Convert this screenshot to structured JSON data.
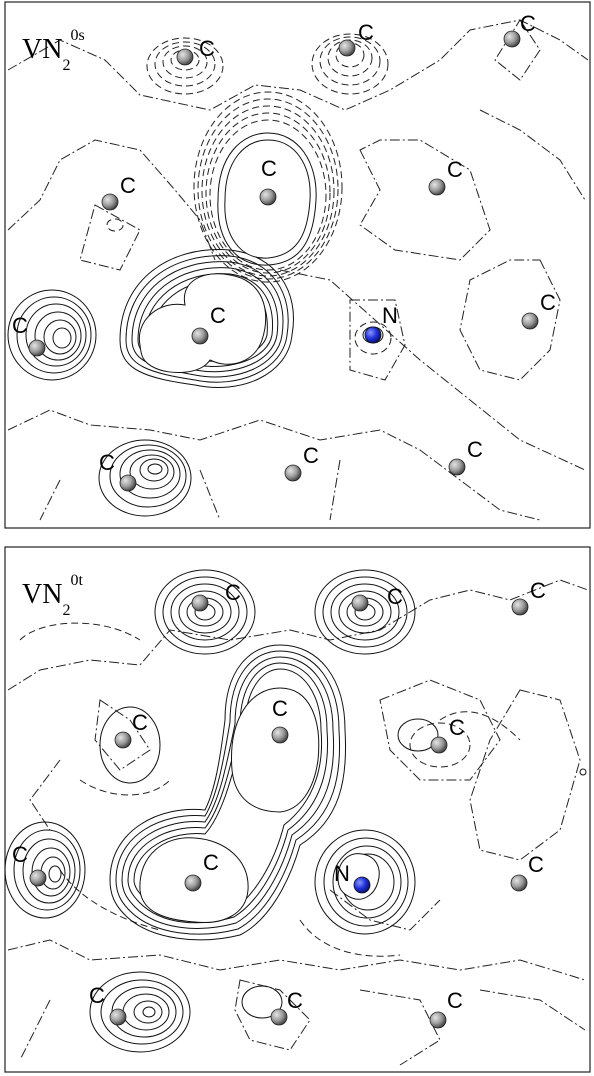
{
  "panels": [
    {
      "title": {
        "main": "VN",
        "sub": "2",
        "sup": "0s"
      },
      "atom_label_carbon": "C",
      "atom_label_nitrogen": "N"
    },
    {
      "title": {
        "main": "VN",
        "sub": "2",
        "sup": "0t"
      },
      "atom_label_carbon": "C",
      "atom_label_nitrogen": "N"
    }
  ],
  "colors": {
    "carbon_atom": "#9a9a9a",
    "nitrogen_atom": "#1f2fd6",
    "contour": "#111111",
    "background": "#ffffff"
  }
}
